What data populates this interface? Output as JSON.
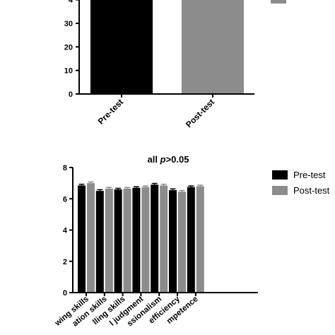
{
  "chart_data": [
    {
      "type": "bar",
      "title": "",
      "ylabel": "",
      "xlabel": "",
      "categories": [
        "Pre-test",
        "Post-test"
      ],
      "values": [
        40,
        40
      ],
      "ylim": [
        0,
        40
      ],
      "yticks": [
        0,
        10,
        20,
        30,
        "4"
      ],
      "grid": false,
      "colors": {
        "Pre-test": "#000000",
        "Post-test": "#8c8c8c"
      },
      "cropped": "top portion of chart and legend are cut off"
    },
    {
      "type": "bar",
      "title_prefix": "all ",
      "title_var": "p",
      "title_suffix": ">0.05",
      "ylabel": "",
      "xlabel": "",
      "categories": [
        "wing skills",
        "ation skills",
        "lling skills",
        "l judgment",
        "ssionalism",
        "efficiency",
        "mpetence"
      ],
      "series": [
        {
          "name": "Pre-test",
          "color": "#000000",
          "values": [
            6.85,
            6.5,
            6.6,
            6.7,
            6.9,
            6.55,
            6.75
          ],
          "errors": [
            0.08,
            0.08,
            0.07,
            0.07,
            0.08,
            0.08,
            0.07
          ]
        },
        {
          "name": "Post-test",
          "color": "#8c8c8c",
          "values": [
            7.0,
            6.65,
            6.65,
            6.75,
            6.85,
            6.45,
            6.8
          ],
          "errors": [
            0.08,
            0.08,
            0.07,
            0.07,
            0.08,
            0.08,
            0.07
          ]
        }
      ],
      "ylim": [
        0,
        8
      ],
      "yticks": [
        0,
        2,
        4,
        6,
        8
      ],
      "grid": false,
      "legend": "right"
    }
  ]
}
